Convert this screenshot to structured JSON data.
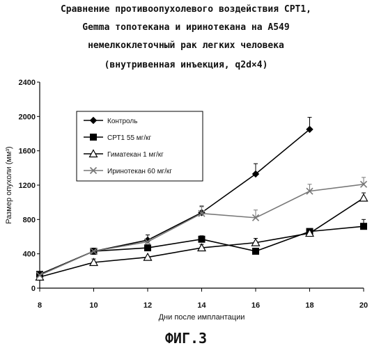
{
  "chart_data": {
    "type": "line",
    "title": [
      "Сравнение противоопухолевого воздействия СРТ1,",
      "Gemma топотекана и иринотекана на А549",
      "немелкоклеточный рак легких человека",
      "(внутривенная инъекция, q2d×4)"
    ],
    "xlabel": "Дни после имплантации",
    "ylabel": "Размер опухоли (мм³)",
    "xlim": [
      8,
      20
    ],
    "ylim": [
      0,
      2400
    ],
    "xticks": [
      8,
      10,
      12,
      14,
      16,
      18,
      20
    ],
    "yticks": [
      0,
      400,
      800,
      1200,
      1600,
      2000,
      2400
    ],
    "ytick_labels": [
      "0",
      "400",
      "800",
      "1200",
      "1600",
      "2000",
      "2400"
    ],
    "legend_position": "top-left",
    "series": [
      {
        "name": "Контроль",
        "marker": "diamond",
        "color": "#000000",
        "x": [
          8,
          10,
          12,
          14,
          16,
          18
        ],
        "y": [
          160,
          430,
          560,
          880,
          1330,
          1850
        ],
        "err": [
          0,
          0,
          60,
          70,
          120,
          140
        ]
      },
      {
        "name": "СРТ1 55 мг/кг",
        "marker": "square",
        "color": "#000000",
        "x": [
          8,
          10,
          12,
          14,
          16,
          18,
          20
        ],
        "y": [
          160,
          430,
          470,
          570,
          430,
          660,
          720
        ],
        "err": [
          0,
          0,
          0,
          40,
          0,
          30,
          80
        ]
      },
      {
        "name": "Гиматекан 1 мг/кг",
        "marker": "triangle",
        "color": "#000000",
        "x": [
          8,
          10,
          12,
          14,
          16,
          18,
          20
        ],
        "y": [
          130,
          300,
          360,
          470,
          530,
          640,
          1050
        ],
        "err": [
          0,
          40,
          0,
          40,
          50,
          0,
          60
        ]
      },
      {
        "name": "Иринотекан 60 мг/кг",
        "marker": "x",
        "color": "#777777",
        "x": [
          8,
          10,
          12,
          14,
          16,
          18,
          20
        ],
        "y": [
          150,
          430,
          540,
          870,
          820,
          1130,
          1210
        ],
        "err": [
          0,
          0,
          0,
          90,
          90,
          80,
          80
        ]
      }
    ]
  },
  "figure_label": "ФИГ.3"
}
